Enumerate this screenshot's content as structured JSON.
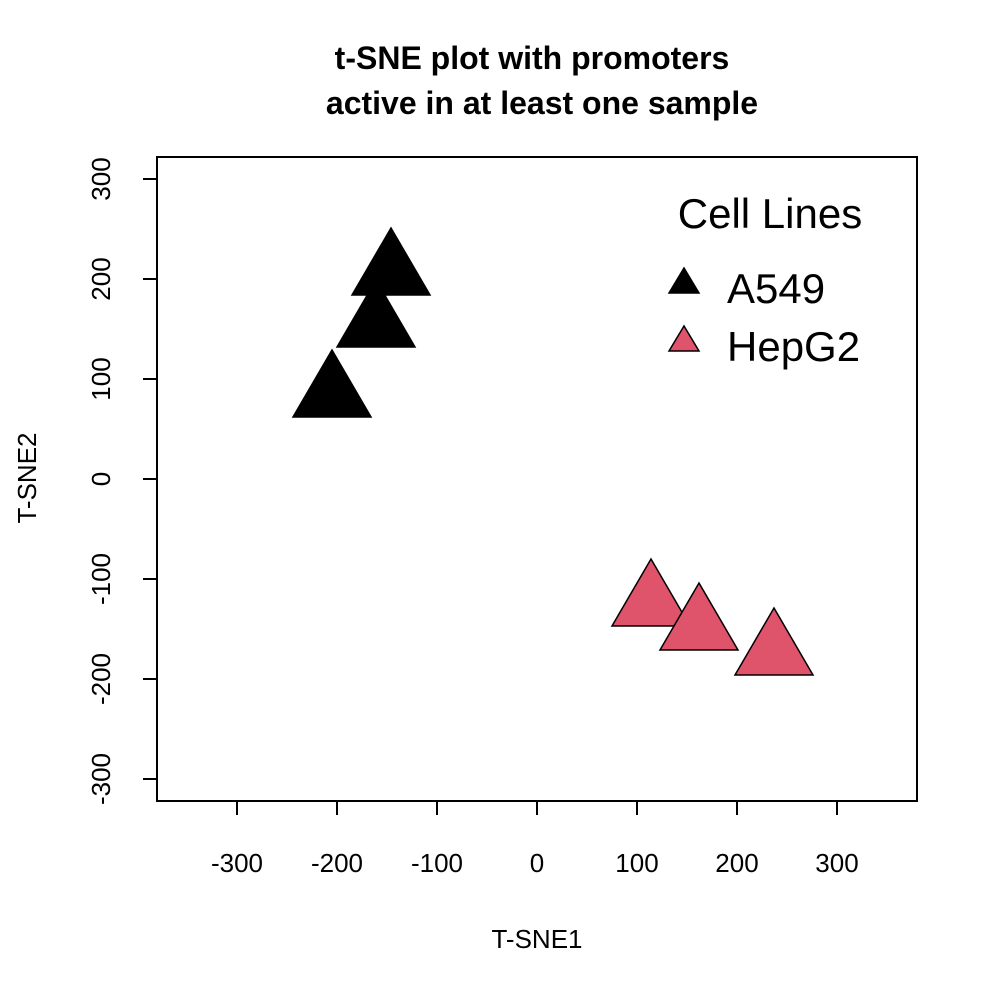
{
  "chart_data": {
    "type": "scatter",
    "title_lines": [
      "t-SNE plot with promoters",
      "active in at least one sample"
    ],
    "xlabel": "T-SNE1",
    "ylabel": "T-SNE2",
    "xlim": [
      -380,
      380
    ],
    "ylim": [
      -322,
      322
    ],
    "xticks": [
      -300,
      -200,
      -100,
      0,
      100,
      200,
      300
    ],
    "yticks": [
      -300,
      -200,
      -100,
      0,
      100,
      200,
      300
    ],
    "xtick_labels": [
      "-300",
      "-200",
      "-100",
      "0",
      "100",
      "200",
      "300"
    ],
    "ytick_labels": [
      "-300",
      "-200",
      "-100",
      "0",
      "100",
      "200",
      "300"
    ],
    "grid": false,
    "marker": "triangle",
    "legend": {
      "title": "Cell Lines",
      "position": "top-right",
      "entries": [
        {
          "label": "A549",
          "color": "#000000"
        },
        {
          "label": "HepG2",
          "color": "#DF536B"
        }
      ]
    },
    "series": [
      {
        "name": "A549",
        "color": "#000000",
        "points": [
          {
            "x": -146,
            "y": 205
          },
          {
            "x": -161,
            "y": 153
          },
          {
            "x": -205,
            "y": 83
          }
        ]
      },
      {
        "name": "HepG2",
        "color": "#DF536B",
        "points": [
          {
            "x": 114,
            "y": -126
          },
          {
            "x": 162,
            "y": -150
          },
          {
            "x": 237,
            "y": -175
          }
        ]
      }
    ]
  }
}
